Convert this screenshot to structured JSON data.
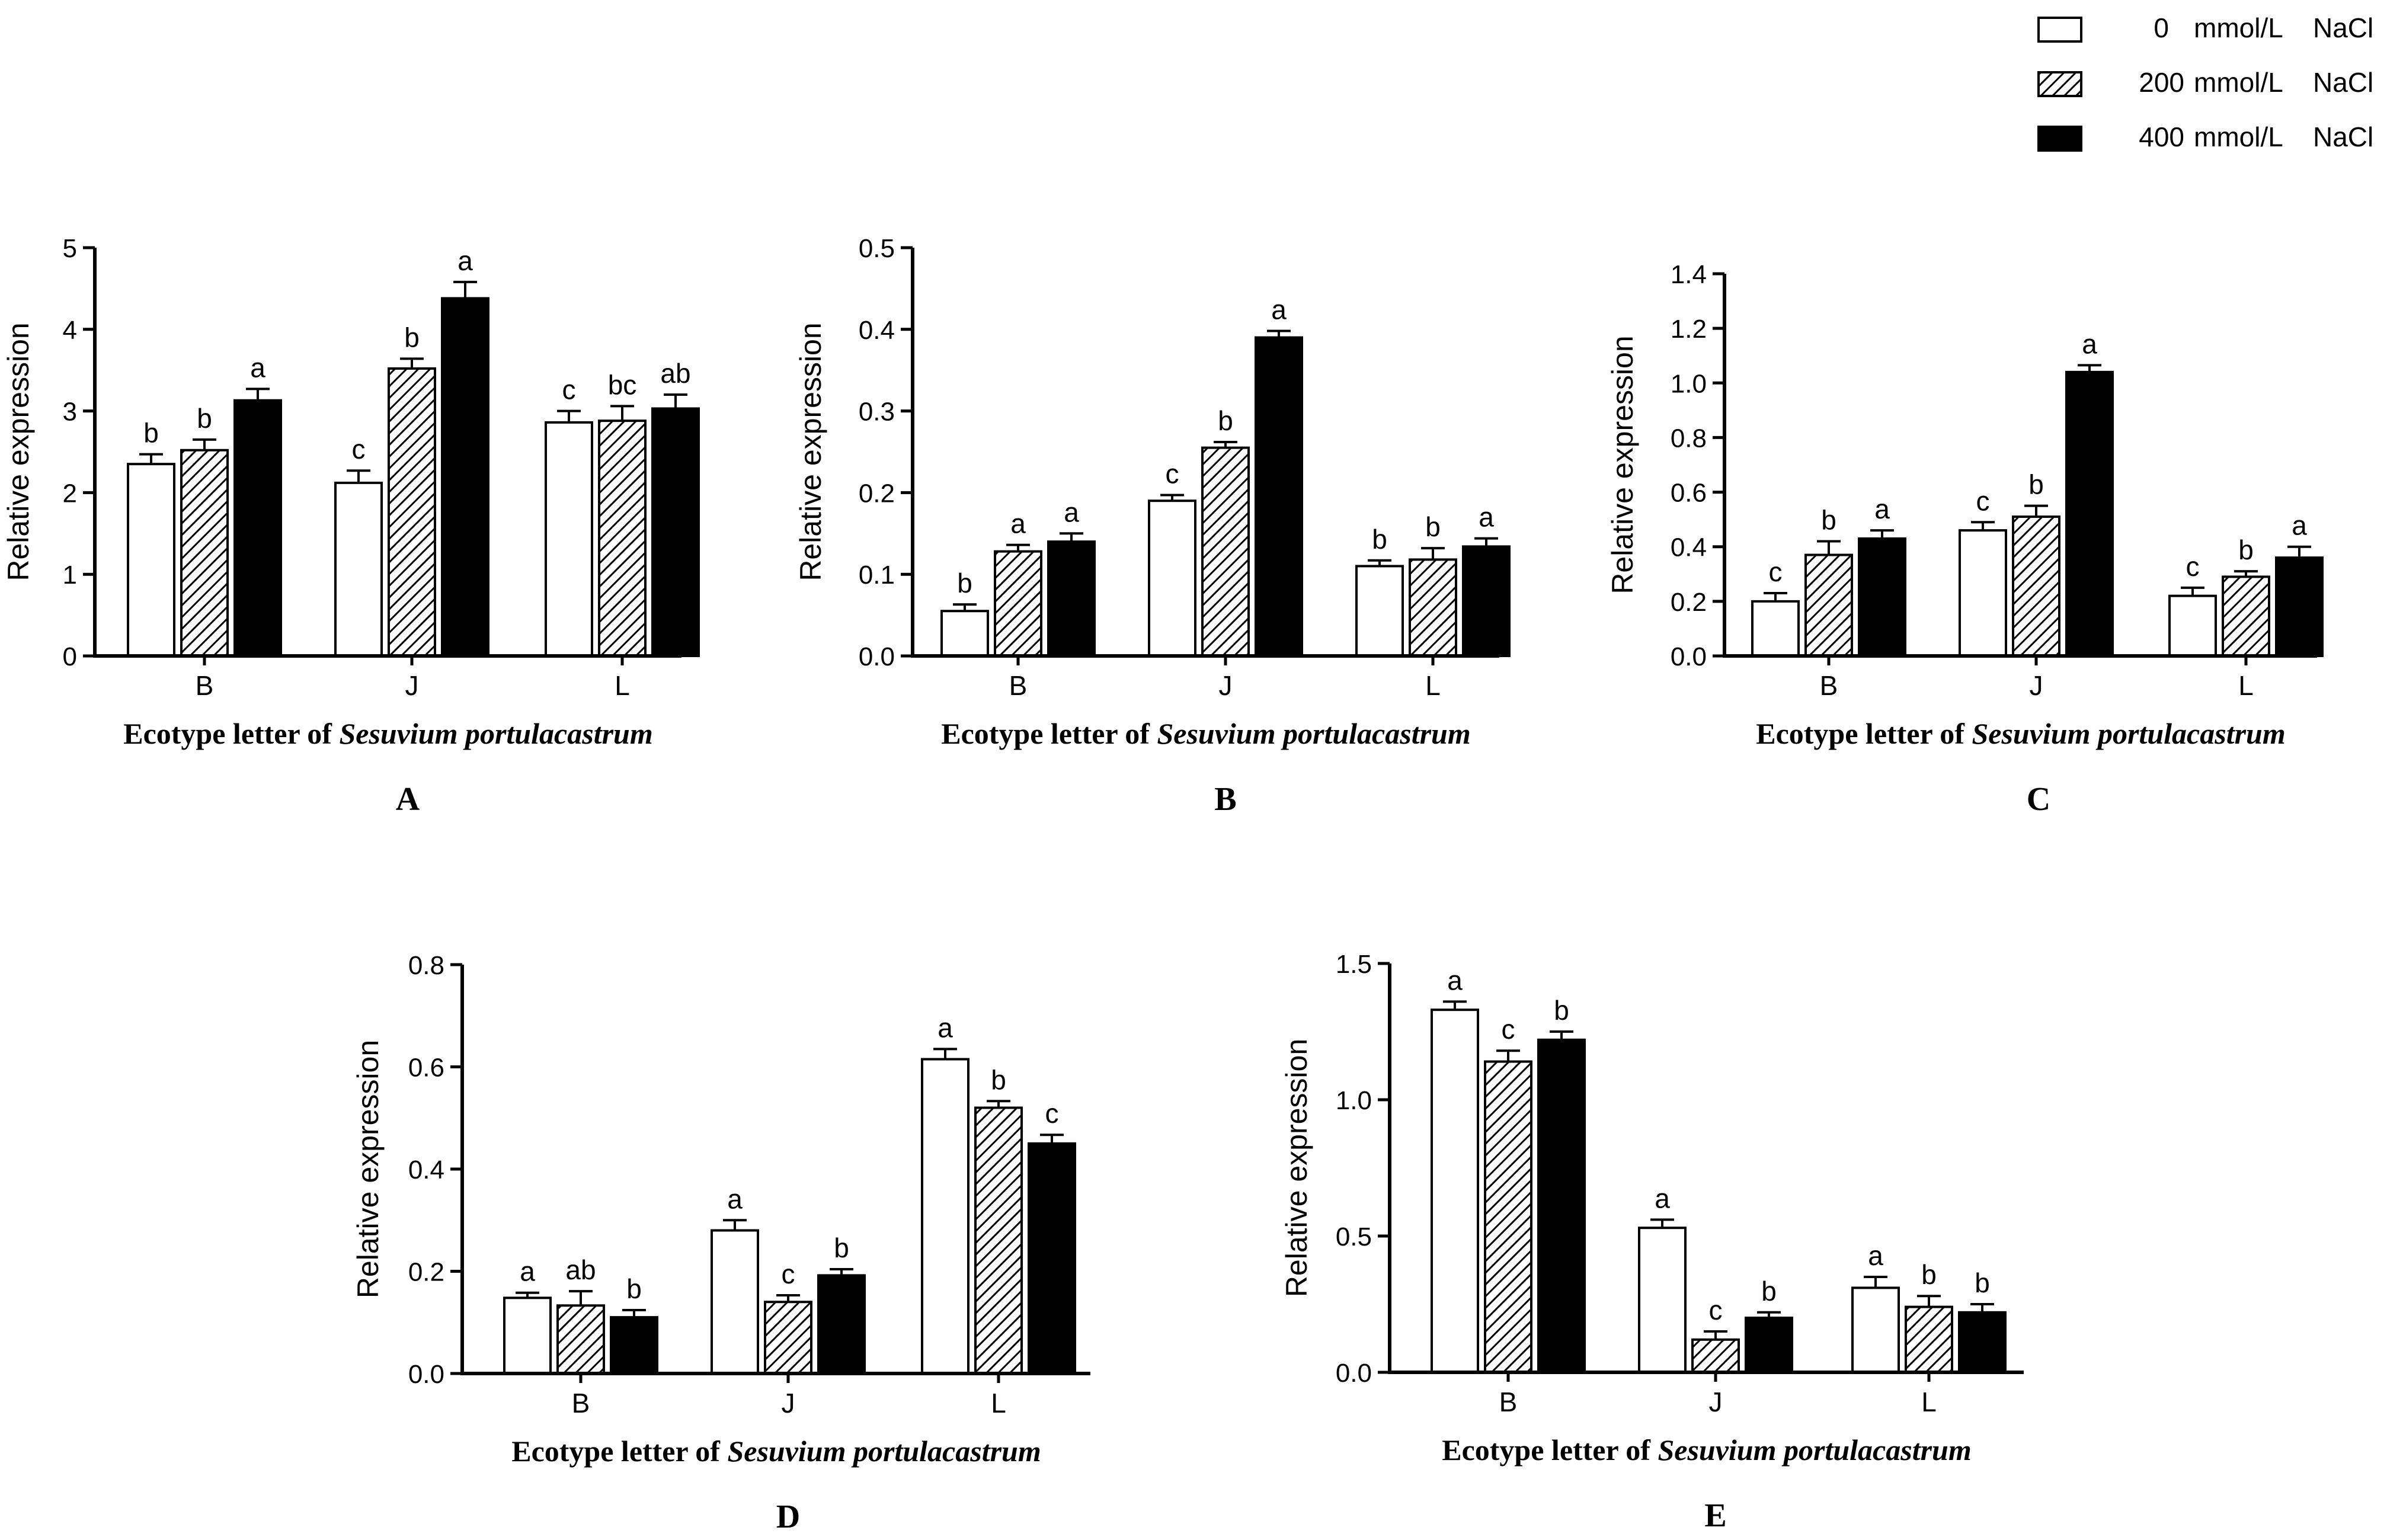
{
  "legend": {
    "position": "top-right",
    "entries": [
      {
        "concentration": "0",
        "unit": "mmol/L",
        "salt": "NaCl",
        "fill": "white"
      },
      {
        "concentration": "200",
        "unit": "mmol/L",
        "salt": "NaCl",
        "fill": "hatch"
      },
      {
        "concentration": "400",
        "unit": "mmol/L",
        "salt": "NaCl",
        "fill": "black"
      }
    ]
  },
  "colors": {
    "bar_black": "#000000",
    "bar_white": "#ffffff",
    "stroke": "#000000"
  },
  "chart_data": [
    {
      "type": "bar",
      "panel": "A",
      "ylabel": "Relative expression",
      "xlabel_prefix": "Ecotype letter of",
      "xlabel_italic": "Sesuvium portulacastrum",
      "categories": [
        "B",
        "J",
        "L"
      ],
      "ylim": [
        0,
        5
      ],
      "yticks": [
        0,
        1,
        2,
        3,
        4,
        5
      ],
      "ytick_labels": [
        "0",
        "1",
        "2",
        "3",
        "4",
        "5"
      ],
      "series": [
        {
          "name": "0 mmol/L NaCl",
          "values": [
            2.35,
            2.12,
            2.86
          ],
          "errors": [
            0.12,
            0.15,
            0.14
          ],
          "letters": [
            "b",
            "c",
            "c"
          ]
        },
        {
          "name": "200 mmol/L NaCl",
          "values": [
            2.52,
            3.52,
            2.88
          ],
          "errors": [
            0.13,
            0.12,
            0.18
          ],
          "letters": [
            "b",
            "b",
            "bc"
          ]
        },
        {
          "name": "400 mmol/L NaCl",
          "values": [
            3.13,
            4.38,
            3.03
          ],
          "errors": [
            0.14,
            0.2,
            0.17
          ],
          "letters": [
            "a",
            "a",
            "ab"
          ]
        }
      ]
    },
    {
      "type": "bar",
      "panel": "B",
      "ylabel": "Relative expression",
      "xlabel_prefix": "Ecotype letter of",
      "xlabel_italic": "Sesuvium portulacastrum",
      "categories": [
        "B",
        "J",
        "L"
      ],
      "ylim": [
        0,
        0.5
      ],
      "yticks": [
        0,
        0.1,
        0.2,
        0.3,
        0.4,
        0.5
      ],
      "ytick_labels": [
        "0.0",
        "0.1",
        "0.2",
        "0.3",
        "0.4",
        "0.5"
      ],
      "series": [
        {
          "name": "0 mmol/L NaCl",
          "values": [
            0.055,
            0.19,
            0.11
          ],
          "errors": [
            0.008,
            0.007,
            0.007
          ],
          "letters": [
            "b",
            "c",
            "b"
          ]
        },
        {
          "name": "200 mmol/L NaCl",
          "values": [
            0.128,
            0.255,
            0.118
          ],
          "errors": [
            0.008,
            0.007,
            0.014
          ],
          "letters": [
            "a",
            "b",
            "b"
          ]
        },
        {
          "name": "400 mmol/L NaCl",
          "values": [
            0.14,
            0.39,
            0.134
          ],
          "errors": [
            0.01,
            0.008,
            0.01
          ],
          "letters": [
            "a",
            "a",
            "a"
          ]
        }
      ]
    },
    {
      "type": "bar",
      "panel": "C",
      "ylabel": "Relative expression",
      "xlabel_prefix": "Ecotype letter of",
      "xlabel_italic": "Sesuvium portulacastrum",
      "categories": [
        "B",
        "J",
        "L"
      ],
      "ylim": [
        0,
        1.4
      ],
      "yticks": [
        0,
        0.2,
        0.4,
        0.6,
        0.8,
        1.0,
        1.2,
        1.4
      ],
      "ytick_labels": [
        "0.0",
        "0.2",
        "0.4",
        "0.6",
        "0.8",
        "1.0",
        "1.2",
        "1.4"
      ],
      "series": [
        {
          "name": "0 mmol/L NaCl",
          "values": [
            0.2,
            0.46,
            0.22
          ],
          "errors": [
            0.03,
            0.03,
            0.03
          ],
          "letters": [
            "c",
            "c",
            "c"
          ]
        },
        {
          "name": "200 mmol/L NaCl",
          "values": [
            0.37,
            0.51,
            0.29
          ],
          "errors": [
            0.05,
            0.04,
            0.02
          ],
          "letters": [
            "b",
            "b",
            "b"
          ]
        },
        {
          "name": "400 mmol/L NaCl",
          "values": [
            0.43,
            1.04,
            0.36
          ],
          "errors": [
            0.03,
            0.025,
            0.04
          ],
          "letters": [
            "a",
            "a",
            "a"
          ]
        }
      ]
    },
    {
      "type": "bar",
      "panel": "D",
      "ylabel": "Relative expression",
      "xlabel_prefix": "Ecotype letter of",
      "xlabel_italic": "Sesuvium portulacastrum",
      "categories": [
        "B",
        "J",
        "L"
      ],
      "ylim": [
        0,
        0.8
      ],
      "yticks": [
        0,
        0.2,
        0.4,
        0.6,
        0.8
      ],
      "ytick_labels": [
        "0.0",
        "0.2",
        "0.4",
        "0.6",
        "0.8"
      ],
      "series": [
        {
          "name": "0 mmol/L NaCl",
          "values": [
            0.148,
            0.28,
            0.615
          ],
          "errors": [
            0.01,
            0.02,
            0.02
          ],
          "letters": [
            "a",
            "a",
            "a"
          ]
        },
        {
          "name": "200 mmol/L NaCl",
          "values": [
            0.133,
            0.14,
            0.52
          ],
          "errors": [
            0.028,
            0.013,
            0.013
          ],
          "letters": [
            "ab",
            "c",
            "b"
          ]
        },
        {
          "name": "400 mmol/L NaCl",
          "values": [
            0.11,
            0.192,
            0.45
          ],
          "errors": [
            0.014,
            0.012,
            0.017
          ],
          "letters": [
            "b",
            "b",
            "c"
          ]
        }
      ]
    },
    {
      "type": "bar",
      "panel": "E",
      "ylabel": "Relative expression",
      "xlabel_prefix": "Ecotype letter of",
      "xlabel_italic": "Sesuvium portulacastrum",
      "categories": [
        "B",
        "J",
        "L"
      ],
      "ylim": [
        0,
        1.5
      ],
      "yticks": [
        0,
        0.5,
        1.0,
        1.5
      ],
      "ytick_labels": [
        "0.0",
        "0.5",
        "1.0",
        "1.5"
      ],
      "series": [
        {
          "name": "0 mmol/L NaCl",
          "values": [
            1.33,
            0.53,
            0.31
          ],
          "errors": [
            0.03,
            0.03,
            0.04
          ],
          "letters": [
            "a",
            "a",
            "a"
          ]
        },
        {
          "name": "200 mmol/L NaCl",
          "values": [
            1.14,
            0.12,
            0.24
          ],
          "errors": [
            0.04,
            0.03,
            0.04
          ],
          "letters": [
            "c",
            "c",
            "b"
          ]
        },
        {
          "name": "400 mmol/L NaCl",
          "values": [
            1.22,
            0.2,
            0.22
          ],
          "errors": [
            0.03,
            0.02,
            0.03
          ],
          "letters": [
            "b",
            "b",
            "b"
          ]
        }
      ]
    }
  ]
}
